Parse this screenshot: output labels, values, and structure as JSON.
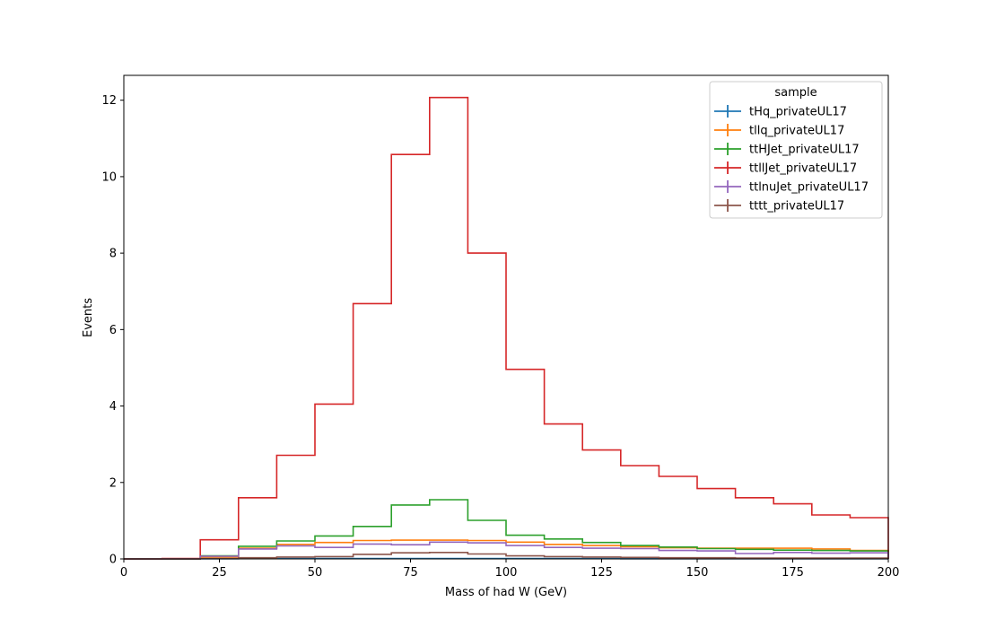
{
  "chart_data": {
    "type": "histogram-step",
    "xlabel": "Mass of had W (GeV)",
    "ylabel": "Events",
    "xlim": [
      0,
      200
    ],
    "ylim": [
      0,
      12.65
    ],
    "xticks": [
      0,
      25,
      50,
      75,
      100,
      125,
      150,
      175,
      200
    ],
    "yticks": [
      0,
      2,
      4,
      6,
      8,
      10,
      12
    ],
    "bin_edges": [
      0,
      10,
      20,
      30,
      40,
      50,
      60,
      70,
      80,
      90,
      100,
      110,
      120,
      130,
      140,
      150,
      160,
      170,
      180,
      190,
      200
    ],
    "grid": false,
    "legend": {
      "title": "sample",
      "placement": "top-right"
    },
    "series": [
      {
        "name": "tHq_privateUL17",
        "color": "#1f77b4",
        "values": [
          0,
          0,
          0.005,
          0.01,
          0.01,
          0.01,
          0.01,
          0.01,
          0.01,
          0.01,
          0.01,
          0.01,
          0.01,
          0.005,
          0.005,
          0.005,
          0.005,
          0.005,
          0.005,
          0.005
        ]
      },
      {
        "name": "tllq_privateUL17",
        "color": "#ff7f0e",
        "values": [
          0,
          0,
          0.05,
          0.28,
          0.38,
          0.43,
          0.48,
          0.49,
          0.49,
          0.48,
          0.44,
          0.38,
          0.35,
          0.32,
          0.29,
          0.28,
          0.28,
          0.28,
          0.26,
          0.22
        ]
      },
      {
        "name": "ttHJet_privateUL17",
        "color": "#2ca02c",
        "values": [
          0,
          0,
          0.08,
          0.33,
          0.47,
          0.6,
          0.85,
          1.41,
          1.55,
          1.01,
          0.62,
          0.52,
          0.43,
          0.35,
          0.31,
          0.27,
          0.25,
          0.23,
          0.22,
          0.21
        ]
      },
      {
        "name": "ttllJet_privateUL17",
        "color": "#d62728",
        "values": [
          0,
          0.01,
          0.5,
          1.6,
          2.71,
          4.05,
          6.68,
          10.58,
          12.07,
          8.0,
          4.96,
          3.53,
          2.85,
          2.44,
          2.16,
          1.84,
          1.6,
          1.44,
          1.15,
          1.08
        ]
      },
      {
        "name": "ttlnuJet_privateUL17",
        "color": "#9467bd",
        "values": [
          0,
          0,
          0.07,
          0.26,
          0.34,
          0.3,
          0.39,
          0.37,
          0.44,
          0.42,
          0.35,
          0.3,
          0.28,
          0.27,
          0.22,
          0.21,
          0.14,
          0.17,
          0.15,
          0.16
        ]
      },
      {
        "name": "tttt_privateUL17",
        "color": "#8c564b",
        "values": [
          0,
          0,
          0.01,
          0.03,
          0.05,
          0.06,
          0.12,
          0.16,
          0.17,
          0.13,
          0.08,
          0.06,
          0.05,
          0.04,
          0.03,
          0.03,
          0.02,
          0.02,
          0.02,
          0.02
        ]
      }
    ]
  }
}
